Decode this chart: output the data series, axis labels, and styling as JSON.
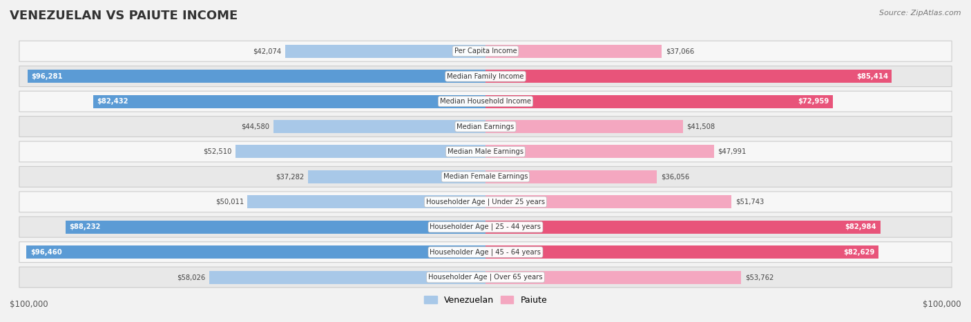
{
  "title": "VENEZUELAN VS PAIUTE INCOME",
  "source": "Source: ZipAtlas.com",
  "categories": [
    "Per Capita Income",
    "Median Family Income",
    "Median Household Income",
    "Median Earnings",
    "Median Male Earnings",
    "Median Female Earnings",
    "Householder Age | Under 25 years",
    "Householder Age | 25 - 44 years",
    "Householder Age | 45 - 64 years",
    "Householder Age | Over 65 years"
  ],
  "venezuelan_values": [
    42074,
    96281,
    82432,
    44580,
    52510,
    37282,
    50011,
    88232,
    96460,
    58026
  ],
  "paiute_values": [
    37066,
    85414,
    72959,
    41508,
    47991,
    36056,
    51743,
    82984,
    82629,
    53762
  ],
  "max_value": 100000,
  "ven_light": "#a8c8e8",
  "ven_dark": "#5b9bd5",
  "pai_light": "#f4a7c0",
  "pai_dark": "#e8547a",
  "venezuelan_label": "Venezuelan",
  "paiute_label": "Paiute",
  "axis_label_left": "$100,000",
  "axis_label_right": "$100,000",
  "bg_color": "#f2f2f2",
  "row_color_odd": "#e8e8e8",
  "row_color_even": "#f7f7f7",
  "threshold_dark": 70000
}
